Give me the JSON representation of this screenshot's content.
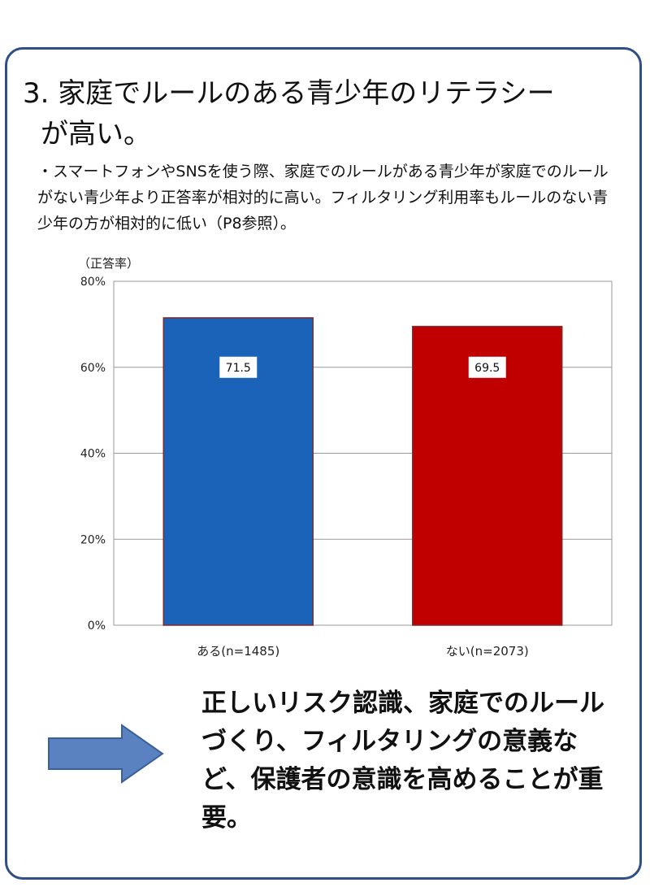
{
  "heading": {
    "line1": "3. 家庭でルールのある青少年のリテラシー",
    "line2": "が高い。"
  },
  "description": "・スマートフォンやSNSを使う際、家庭でのルールがある青少年が家庭でのルールがない青少年より正答率が相対的に高い。フィルタリング利用率もルールのない青少年の方が相対的に低い（P8参照）。",
  "chart_data": {
    "type": "bar",
    "ylabel": "（正答率）",
    "categories": [
      "ある(n=1485)",
      "ない(n=2073)"
    ],
    "values": [
      71.5,
      69.5
    ],
    "data_labels": [
      "71.5",
      "69.5"
    ],
    "colors": [
      "#1a63b8",
      "#c00000"
    ],
    "ylim": [
      0,
      80
    ],
    "yticks": [
      0,
      20,
      40,
      60,
      80
    ],
    "ytick_labels": [
      "0%",
      "20%",
      "40%",
      "60%",
      "80%"
    ],
    "grid": true
  },
  "conclusion": "正しいリスク認識、家庭でのルールづくり、フィルタリングの意義など、保護者の意識を高めることが重要。",
  "colors": {
    "frame": "#2f4f86",
    "arrow_fill": "#5b82c0",
    "arrow_stroke": "#3a5f9a"
  },
  "icons": {
    "arrow": "right-arrow-icon"
  }
}
